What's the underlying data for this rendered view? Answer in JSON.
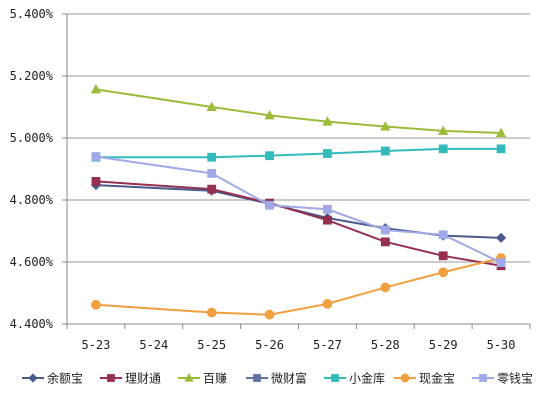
{
  "chart_data": {
    "type": "line",
    "categories": [
      "5-23",
      "5-24",
      "5-25",
      "5-26",
      "5-27",
      "5-28",
      "5-29",
      "5-30"
    ],
    "ylim": [
      4.4,
      5.4
    ],
    "yticks": [
      "4.400%",
      "4.600%",
      "4.800%",
      "5.000%",
      "5.200%",
      "5.400%"
    ],
    "ytick_values": [
      4.4,
      4.6,
      4.8,
      5.0,
      5.2,
      5.4
    ],
    "grid": "horizontal",
    "legend": "bottom",
    "series": [
      {
        "name": "余额宝",
        "color": "#4a5a8c",
        "marker": "diamond",
        "values": [
          4.848,
          null,
          4.83,
          4.788,
          4.742,
          4.709,
          4.685,
          4.678
        ]
      },
      {
        "name": "理财通",
        "color": "#953050",
        "marker": "square",
        "values": [
          4.86,
          null,
          4.835,
          4.79,
          4.735,
          4.665,
          4.62,
          4.588
        ]
      },
      {
        "name": "百赚",
        "color": "#9bbb3a",
        "marker": "triangle",
        "values": [
          5.157,
          null,
          5.1,
          5.073,
          5.053,
          5.037,
          5.023,
          5.016
        ]
      },
      {
        "name": "微财富",
        "color": "#6070a0",
        "marker": "square",
        "values": [
          null,
          null,
          null,
          null,
          null,
          null,
          null,
          null
        ]
      },
      {
        "name": "小金库",
        "color": "#33bbbb",
        "marker": "square",
        "values": [
          4.938,
          null,
          4.938,
          4.943,
          4.95,
          4.958,
          4.965,
          4.965
        ]
      },
      {
        "name": "现金宝",
        "color": "#f0a040",
        "marker": "circle",
        "values": [
          4.462,
          null,
          4.437,
          4.43,
          4.465,
          4.518,
          4.567,
          4.613
        ]
      },
      {
        "name": "零钱宝",
        "color": "#a0a8e8",
        "marker": "square",
        "values": [
          4.94,
          null,
          4.886,
          4.783,
          4.77,
          4.703,
          4.688,
          4.598
        ]
      }
    ]
  }
}
